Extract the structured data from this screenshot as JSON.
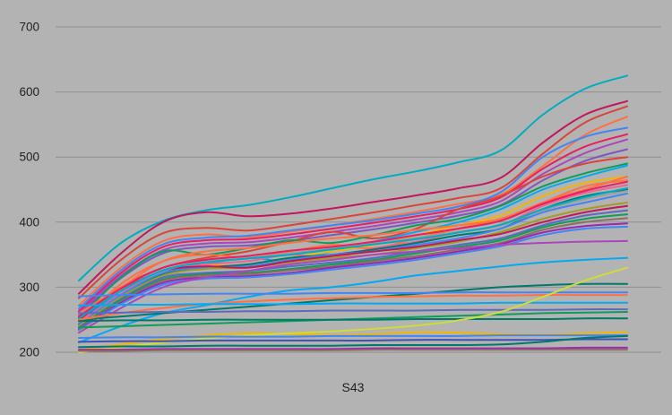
{
  "chart_data": {
    "type": "line",
    "title": "",
    "xlabel": "",
    "ylabel": "",
    "x_ticks": [
      "S43"
    ],
    "y_ticks": [
      700,
      600,
      500,
      400,
      300,
      200
    ],
    "ylim": [
      200,
      700
    ],
    "grid": true,
    "legend_position": "none",
    "background": "#b3b3b3",
    "grid_color": "#8f8f8f",
    "axis_text_color": "#1f1f1f",
    "series": [
      {
        "color": "#00ACC1",
        "values": [
          310,
          368,
          402,
          418,
          426,
          438,
          452,
          466,
          478,
          492,
          510,
          565,
          605,
          625
        ]
      },
      {
        "color": "#C2185B",
        "values": [
          290,
          352,
          400,
          415,
          409,
          413,
          421,
          431,
          441,
          452,
          468,
          522,
          565,
          586
        ]
      },
      {
        "color": "#DB4437",
        "values": [
          283,
          342,
          383,
          391,
          387,
          395,
          405,
          415,
          426,
          437,
          452,
          505,
          553,
          578
        ]
      },
      {
        "color": "#FF7043",
        "values": [
          272,
          330,
          371,
          381,
          377,
          385,
          395,
          405,
          416,
          428,
          442,
          486,
          534,
          562
        ]
      },
      {
        "color": "#4285F4",
        "values": [
          267,
          326,
          366,
          376,
          379,
          387,
          395,
          403,
          413,
          424,
          446,
          500,
          531,
          545
        ]
      },
      {
        "color": "#E91E63",
        "values": [
          263,
          322,
          362,
          372,
          374,
          381,
          390,
          399,
          409,
          420,
          438,
          482,
          516,
          535
        ]
      },
      {
        "color": "#AB47BC",
        "values": [
          260,
          318,
          357,
          367,
          369,
          376,
          385,
          394,
          404,
          415,
          432,
          474,
          506,
          527
        ]
      },
      {
        "color": "#7E57C2",
        "values": [
          257,
          314,
          352,
          362,
          364,
          371,
          380,
          389,
          399,
          410,
          426,
          464,
          494,
          512
        ]
      },
      {
        "color": "#DB4437",
        "values": [
          254,
          300,
          330,
          345,
          355,
          370,
          385,
          375,
          390,
          420,
          440,
          470,
          490,
          500
        ]
      },
      {
        "color": "#0F9D58",
        "values": [
          252,
          315,
          355,
          350,
          360,
          372,
          368,
          380,
          395,
          405,
          425,
          455,
          475,
          490
        ]
      },
      {
        "color": "#03A9F4",
        "values": [
          250,
          290,
          320,
          335,
          345,
          340,
          355,
          370,
          385,
          400,
          420,
          450,
          470,
          487
        ]
      },
      {
        "color": "#F4B400",
        "values": [
          230,
          280,
          320,
          335,
          330,
          345,
          355,
          365,
          380,
          395,
          410,
          440,
          460,
          470
        ]
      },
      {
        "color": "#FF7043",
        "values": [
          246,
          305,
          340,
          350,
          345,
          355,
          365,
          360,
          375,
          390,
          405,
          430,
          455,
          464
        ]
      },
      {
        "color": "#F06292",
        "values": [
          245,
          290,
          325,
          335,
          340,
          350,
          345,
          360,
          370,
          385,
          395,
          425,
          445,
          457
        ]
      },
      {
        "color": "#00796B",
        "values": [
          243,
          285,
          320,
          330,
          335,
          345,
          350,
          358,
          368,
          380,
          390,
          420,
          440,
          450
        ]
      },
      {
        "color": "#4285F4",
        "values": [
          242,
          288,
          322,
          330,
          332,
          342,
          350,
          355,
          365,
          375,
          390,
          415,
          430,
          444
        ]
      },
      {
        "color": "#9E9D24",
        "values": [
          240,
          285,
          318,
          328,
          330,
          338,
          345,
          350,
          360,
          370,
          385,
          405,
          420,
          430
        ]
      },
      {
        "color": "#C2185B",
        "values": [
          250,
          295,
          325,
          332,
          330,
          340,
          348,
          355,
          362,
          372,
          382,
          400,
          415,
          425
        ]
      },
      {
        "color": "#5C6BC0",
        "values": [
          238,
          282,
          315,
          322,
          325,
          332,
          338,
          345,
          355,
          365,
          375,
          395,
          410,
          418
        ]
      },
      {
        "color": "#0F9D58",
        "values": [
          237,
          280,
          312,
          320,
          322,
          328,
          335,
          342,
          352,
          362,
          372,
          392,
          405,
          412
        ]
      },
      {
        "color": "#8D6E63",
        "values": [
          236,
          278,
          310,
          318,
          320,
          326,
          332,
          340,
          348,
          358,
          368,
          388,
          400,
          406
        ]
      },
      {
        "color": "#9C27B0",
        "values": [
          235,
          276,
          307,
          315,
          317,
          322,
          330,
          337,
          345,
          355,
          366,
          384,
          394,
          398
        ]
      },
      {
        "color": "#4285F4",
        "values": [
          234,
          274,
          304,
          313,
          315,
          320,
          327,
          334,
          342,
          352,
          363,
          380,
          390,
          393
        ]
      },
      {
        "color": "#FF7043",
        "values": [
          260,
          300,
          340,
          355,
          360,
          368,
          375,
          380,
          388,
          395,
          405,
          430,
          450,
          470
        ]
      },
      {
        "color": "#9E9E9E",
        "values": [
          258,
          295,
          325,
          340,
          345,
          352,
          360,
          368,
          376,
          385,
          395,
          418,
          435,
          448
        ]
      },
      {
        "color": "#E91E63",
        "values": [
          255,
          298,
          330,
          342,
          348,
          356,
          362,
          370,
          380,
          390,
          402,
          428,
          448,
          462
        ]
      },
      {
        "color": "#00ACC1",
        "values": [
          252,
          294,
          326,
          338,
          344,
          350,
          358,
          366,
          374,
          384,
          396,
          420,
          438,
          452
        ]
      },
      {
        "color": "#AB47BC",
        "values": [
          230,
          268,
          300,
          315,
          325,
          335,
          342,
          350,
          355,
          360,
          365,
          368,
          370,
          371
        ]
      },
      {
        "color": "#03A9F4",
        "values": [
          215,
          240,
          260,
          272,
          285,
          295,
          300,
          308,
          318,
          325,
          332,
          338,
          342,
          345
        ]
      },
      {
        "color": "#00796B",
        "values": [
          250,
          255,
          260,
          265,
          270,
          275,
          280,
          285,
          290,
          295,
          300,
          303,
          305,
          305
        ]
      },
      {
        "color": "#4285F4",
        "values": [
          286,
          288,
          289,
          290,
          290,
          290,
          291,
          291,
          291,
          292,
          292,
          292,
          292,
          292
        ]
      },
      {
        "color": "#FF7043",
        "values": [
          250,
          260,
          268,
          274,
          278,
          281,
          283,
          285,
          286,
          287,
          287,
          288,
          288,
          288
        ]
      },
      {
        "color": "#03A9F4",
        "values": [
          272,
          273,
          273,
          274,
          274,
          274,
          275,
          275,
          275,
          275,
          276,
          276,
          276,
          276
        ]
      },
      {
        "color": "#5C6BC0",
        "values": [
          260,
          261,
          262,
          262,
          263,
          263,
          264,
          264,
          264,
          265,
          265,
          265,
          266,
          266
        ]
      },
      {
        "color": "#0F9D58",
        "values": [
          238,
          240,
          242,
          244,
          246,
          248,
          250,
          252,
          254,
          256,
          258,
          260,
          261,
          262
        ]
      },
      {
        "color": "#00796B",
        "values": [
          248,
          249,
          249,
          250,
          250,
          250,
          250,
          250,
          251,
          251,
          251,
          251,
          252,
          252
        ]
      },
      {
        "color": "#F4B400",
        "values": [
          203,
          212,
          220,
          226,
          229,
          228,
          226,
          228,
          231,
          230,
          228,
          227,
          229,
          231
        ]
      },
      {
        "color": "#CDDC39",
        "values": [
          200,
          208,
          215,
          221,
          226,
          229,
          232,
          236,
          241,
          249,
          262,
          285,
          310,
          330
        ]
      },
      {
        "color": "#4285F4",
        "values": [
          222,
          223,
          223,
          224,
          224,
          224,
          225,
          225,
          225,
          225,
          226,
          226,
          226,
          226
        ]
      },
      {
        "color": "#3F51B5",
        "values": [
          216,
          217,
          217,
          218,
          218,
          218,
          218,
          218,
          219,
          219,
          219,
          219,
          220,
          220
        ]
      },
      {
        "color": "#00796B",
        "values": [
          208,
          209,
          209,
          210,
          210,
          210,
          210,
          211,
          211,
          211,
          212,
          216,
          222,
          225
        ]
      },
      {
        "color": "#9C27B0",
        "values": [
          204,
          204,
          205,
          205,
          205,
          205,
          205,
          206,
          206,
          206,
          206,
          206,
          207,
          207
        ]
      },
      {
        "color": "#8D6E63",
        "values": [
          202,
          202,
          203,
          203,
          203,
          203,
          203,
          204,
          204,
          204,
          204,
          204,
          204,
          204
        ]
      }
    ]
  }
}
